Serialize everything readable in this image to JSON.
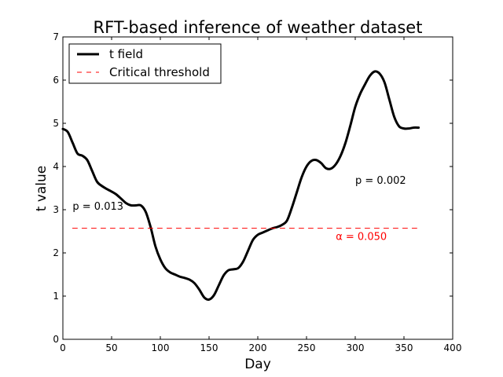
{
  "chart_data": {
    "type": "line",
    "title": "RFT-based inference of weather dataset",
    "xlabel": "Day",
    "ylabel": "t value",
    "xlim": [
      0,
      400
    ],
    "ylim": [
      0,
      7
    ],
    "xticks": [
      0,
      50,
      100,
      150,
      200,
      250,
      300,
      350,
      400
    ],
    "yticks": [
      0,
      1,
      2,
      3,
      4,
      5,
      6,
      7
    ],
    "grid": false,
    "legend_position": "top-left",
    "series": [
      {
        "name": "t field",
        "color": "#000000",
        "style": "solid",
        "x": [
          0,
          5,
          10,
          15,
          20,
          25,
          30,
          35,
          40,
          45,
          50,
          55,
          60,
          65,
          70,
          75,
          80,
          85,
          90,
          95,
          100,
          105,
          110,
          115,
          120,
          125,
          130,
          135,
          140,
          145,
          150,
          155,
          160,
          165,
          170,
          175,
          180,
          185,
          190,
          195,
          200,
          205,
          210,
          215,
          220,
          225,
          230,
          235,
          240,
          245,
          250,
          255,
          260,
          265,
          270,
          275,
          280,
          285,
          290,
          295,
          300,
          305,
          310,
          315,
          320,
          325,
          330,
          335,
          340,
          345,
          350,
          355,
          360,
          365
        ],
        "y": [
          4.87,
          4.8,
          4.55,
          4.3,
          4.25,
          4.15,
          3.9,
          3.65,
          3.55,
          3.48,
          3.42,
          3.35,
          3.25,
          3.15,
          3.1,
          3.1,
          3.1,
          2.95,
          2.6,
          2.15,
          1.85,
          1.65,
          1.55,
          1.5,
          1.45,
          1.42,
          1.38,
          1.3,
          1.15,
          0.97,
          0.92,
          1.02,
          1.25,
          1.48,
          1.6,
          1.62,
          1.65,
          1.8,
          2.05,
          2.3,
          2.42,
          2.47,
          2.52,
          2.57,
          2.6,
          2.65,
          2.75,
          3.05,
          3.4,
          3.75,
          4.0,
          4.13,
          4.15,
          4.08,
          3.96,
          3.95,
          4.05,
          4.25,
          4.55,
          4.95,
          5.38,
          5.68,
          5.9,
          6.1,
          6.2,
          6.15,
          5.95,
          5.55,
          5.15,
          4.93,
          4.88,
          4.88,
          4.9,
          4.9
        ]
      },
      {
        "name": "Critical threshold",
        "color": "#ff0000",
        "style": "dashed",
        "x": [
          10,
          365
        ],
        "y": [
          2.57,
          2.57
        ]
      }
    ],
    "annotations": [
      {
        "text": "p = 0.013",
        "x": 10,
        "y": 3.0,
        "color": "#000000"
      },
      {
        "text": "p = 0.002",
        "x": 300,
        "y": 3.6,
        "color": "#000000"
      },
      {
        "text": "α = 0.050",
        "x": 280,
        "y": 2.3,
        "color": "#ff0000"
      }
    ]
  }
}
